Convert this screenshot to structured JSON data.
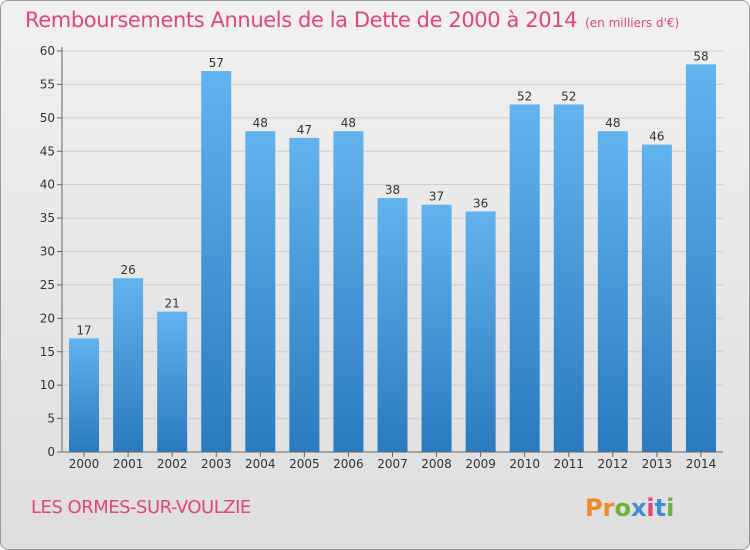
{
  "header": {
    "title": "Remboursements Annuels de la Dette de 2000 à 2014",
    "subtitle": "(en milliers d'€)"
  },
  "footer": {
    "commune": "LES ORMES-SUR-VOULZIE",
    "logo_text": "Proxiti"
  },
  "colors": {
    "title": "#e0457b",
    "bar_light": "#62b3ee",
    "bar_dark": "#2a7ac0",
    "grid": "#cccccc",
    "axis": "#666666"
  },
  "chart_data": {
    "type": "bar",
    "title": "Remboursements Annuels de la Dette de 2000 à 2014",
    "subtitle": "(en milliers d'€)",
    "categories": [
      "2000",
      "2001",
      "2002",
      "2003",
      "2004",
      "2005",
      "2006",
      "2007",
      "2008",
      "2009",
      "2010",
      "2011",
      "2012",
      "2013",
      "2014"
    ],
    "values": [
      17,
      26,
      21,
      57,
      48,
      47,
      48,
      38,
      37,
      36,
      52,
      52,
      48,
      46,
      58
    ],
    "ylim": [
      0,
      60
    ],
    "yticks": [
      0,
      5,
      10,
      15,
      20,
      25,
      30,
      35,
      40,
      45,
      50,
      55,
      60
    ],
    "grid": true,
    "data_labels": true,
    "legend": "none"
  }
}
